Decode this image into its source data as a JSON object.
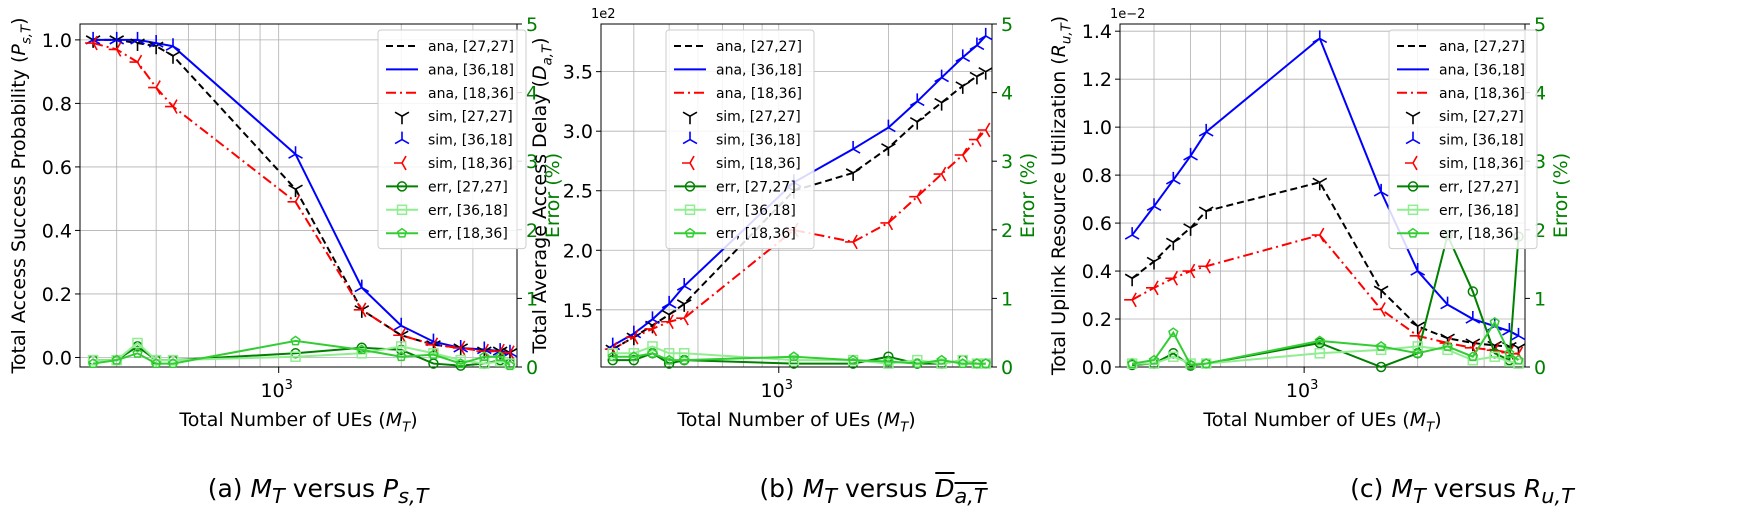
{
  "captions": [
    {
      "label": "(a)",
      "lhs": "M",
      "lhs_sub": "T",
      "mid": " versus ",
      "rhs": "P",
      "rhs_sub": "s,T",
      "overline": false
    },
    {
      "label": "(b)",
      "lhs": "M",
      "lhs_sub": "T",
      "mid": " versus ",
      "rhs": "D",
      "rhs_sub": "a,T",
      "overline": true
    },
    {
      "label": "(c)",
      "lhs": "M",
      "lhs_sub": "T",
      "mid": " versus ",
      "rhs": "R",
      "rhs_sub": "u,T",
      "overline": false
    }
  ],
  "chart_data": [
    {
      "type": "line",
      "xlabel": "Total Number of UEs (M_T)",
      "ylabel": "Total Access Success Probability (P_{s,T})",
      "ylabel_right": "Error (%)",
      "xscale": "log",
      "xlim": [
        325,
        3850
      ],
      "xticks": [
        1000
      ],
      "xtick_labels": [
        "10^3"
      ],
      "ylim": [
        -0.03,
        1.05
      ],
      "yticks": [
        0.0,
        0.2,
        0.4,
        0.6,
        0.8,
        1.0
      ],
      "ytick_labels": [
        "0.0",
        "0.2",
        "0.4",
        "0.6",
        "0.8",
        "1.0"
      ],
      "y2lim": [
        0,
        5
      ],
      "y2ticks": [
        0,
        1,
        2,
        3,
        4,
        5
      ],
      "exponent_label": "",
      "grid": true,
      "legend_position": "top-right",
      "x": [
        350,
        400,
        450,
        500,
        550,
        1100,
        1600,
        2000,
        2400,
        2800,
        3200,
        3500,
        3700
      ],
      "series": [
        {
          "name": "ana, [27,27]",
          "kind": "ana",
          "color": "#000000",
          "values": [
            1.0,
            1.0,
            0.99,
            0.98,
            0.95,
            0.53,
            0.15,
            0.07,
            0.04,
            0.03,
            0.02,
            0.02,
            0.015
          ]
        },
        {
          "name": "ana, [36,18]",
          "kind": "ana",
          "color": "#0000ff",
          "values": [
            1.0,
            1.0,
            1.0,
            0.99,
            0.98,
            0.64,
            0.22,
            0.1,
            0.05,
            0.03,
            0.025,
            0.02,
            0.015
          ]
        },
        {
          "name": "ana, [18,36]",
          "kind": "ana",
          "color": "#ff0000",
          "values": [
            0.99,
            0.97,
            0.93,
            0.85,
            0.79,
            0.49,
            0.15,
            0.07,
            0.04,
            0.03,
            0.02,
            0.02,
            0.015
          ]
        },
        {
          "name": "sim, [27,27]",
          "kind": "sim",
          "color": "#000000",
          "values": [
            1.0,
            1.0,
            0.99,
            0.98,
            0.95,
            0.53,
            0.15,
            0.07,
            0.04,
            0.03,
            0.02,
            0.02,
            0.015
          ]
        },
        {
          "name": "sim, [36,18]",
          "kind": "sim",
          "color": "#0000ff",
          "values": [
            1.0,
            1.0,
            1.0,
            0.99,
            0.98,
            0.64,
            0.22,
            0.1,
            0.05,
            0.03,
            0.025,
            0.02,
            0.015
          ]
        },
        {
          "name": "sim, [18,36]",
          "kind": "sim",
          "color": "#ff0000",
          "values": [
            0.99,
            0.97,
            0.93,
            0.85,
            0.79,
            0.49,
            0.15,
            0.07,
            0.04,
            0.03,
            0.02,
            0.02,
            0.015
          ]
        },
        {
          "name": "err, [27,27]",
          "kind": "err",
          "color": "#008000",
          "values": [
            0.1,
            0.1,
            0.3,
            0.1,
            0.1,
            0.2,
            0.28,
            0.25,
            0.05,
            0.02,
            0.05,
            0.1,
            0.05
          ]
        },
        {
          "name": "err, [36,18]",
          "kind": "err",
          "color": "#90ee90",
          "values": [
            0.1,
            0.1,
            0.35,
            0.1,
            0.1,
            0.15,
            0.2,
            0.3,
            0.2,
            0.1,
            0.05,
            0.08,
            0.05
          ]
        },
        {
          "name": "err, [18,36]",
          "kind": "err",
          "color": "#32cd32",
          "values": [
            0.05,
            0.1,
            0.2,
            0.05,
            0.05,
            0.38,
            0.25,
            0.15,
            0.18,
            0.05,
            0.15,
            0.15,
            0.02
          ]
        }
      ]
    },
    {
      "type": "line",
      "xlabel": "Total Number of UEs (M_T)",
      "ylabel": "Total Average Access Delay (D_{a,T})",
      "ylabel_right": "Error (%)",
      "xscale": "log",
      "xlim": [
        325,
        3850
      ],
      "xticks": [
        1000
      ],
      "xtick_labels": [
        "10^3"
      ],
      "ylim": [
        1.02,
        3.9
      ],
      "yticks": [
        1.5,
        2.0,
        2.5,
        3.0,
        3.5
      ],
      "ytick_labels": [
        "1.5",
        "2.0",
        "2.5",
        "3.0",
        "3.5"
      ],
      "y2lim": [
        0,
        5
      ],
      "y2ticks": [
        0,
        1,
        2,
        3,
        4,
        5
      ],
      "exponent_label": "1e2",
      "grid": true,
      "legend_position": "top-left",
      "x": [
        350,
        400,
        450,
        500,
        550,
        1100,
        1600,
        2000,
        2400,
        2800,
        3200,
        3500,
        3700
      ],
      "series": [
        {
          "name": "ana, [27,27]",
          "kind": "ana",
          "color": "#000000",
          "values": [
            1.17,
            1.27,
            1.37,
            1.46,
            1.55,
            2.5,
            2.65,
            2.86,
            3.08,
            3.24,
            3.38,
            3.46,
            3.5
          ]
        },
        {
          "name": "ana, [36,18]",
          "kind": "ana",
          "color": "#0000ff",
          "values": [
            1.2,
            1.3,
            1.42,
            1.55,
            1.7,
            2.57,
            2.85,
            3.03,
            3.25,
            3.45,
            3.62,
            3.72,
            3.8
          ]
        },
        {
          "name": "ana, [18,36]",
          "kind": "ana",
          "color": "#ff0000",
          "values": [
            1.17,
            1.27,
            1.34,
            1.4,
            1.43,
            2.17,
            2.07,
            2.23,
            2.45,
            2.64,
            2.8,
            2.93,
            3.01
          ]
        },
        {
          "name": "sim, [27,27]",
          "kind": "sim",
          "color": "#000000",
          "values": [
            1.17,
            1.27,
            1.37,
            1.46,
            1.55,
            2.5,
            2.65,
            2.86,
            3.08,
            3.24,
            3.38,
            3.46,
            3.5
          ]
        },
        {
          "name": "sim, [36,18]",
          "kind": "sim",
          "color": "#0000ff",
          "values": [
            1.2,
            1.3,
            1.42,
            1.55,
            1.7,
            2.57,
            2.85,
            3.03,
            3.25,
            3.45,
            3.62,
            3.72,
            3.8
          ]
        },
        {
          "name": "sim, [18,36]",
          "kind": "sim",
          "color": "#ff0000",
          "values": [
            1.17,
            1.27,
            1.34,
            1.4,
            1.43,
            2.17,
            2.07,
            2.23,
            2.45,
            2.64,
            2.8,
            2.93,
            3.01
          ]
        },
        {
          "name": "err, [27,27]",
          "kind": "err",
          "color": "#008000",
          "values": [
            0.1,
            0.1,
            0.2,
            0.05,
            0.1,
            0.05,
            0.05,
            0.15,
            0.05,
            0.05,
            0.1,
            0.05,
            0.05
          ]
        },
        {
          "name": "err, [36,18]",
          "kind": "err",
          "color": "#90ee90",
          "values": [
            0.2,
            0.2,
            0.3,
            0.2,
            0.2,
            0.1,
            0.1,
            0.05,
            0.1,
            0.05,
            0.1,
            0.05,
            0.05
          ]
        },
        {
          "name": "err, [18,36]",
          "kind": "err",
          "color": "#32cd32",
          "values": [
            0.15,
            0.15,
            0.2,
            0.1,
            0.1,
            0.15,
            0.1,
            0.08,
            0.05,
            0.1,
            0.05,
            0.05,
            0.05
          ]
        }
      ]
    },
    {
      "type": "line",
      "xlabel": "Total Number of UEs (M_T)",
      "ylabel": "Total Uplink Resource Utilization (R_{u,T})",
      "ylabel_right": "Error (%)",
      "xscale": "log",
      "xlim": [
        325,
        3850
      ],
      "xticks": [
        1000
      ],
      "xtick_labels": [
        "10^3"
      ],
      "ylim": [
        0.0,
        1.43
      ],
      "yticks": [
        0.0,
        0.2,
        0.4,
        0.6,
        0.8,
        1.0,
        1.2,
        1.4
      ],
      "ytick_labels": [
        "0.0",
        "0.2",
        "0.4",
        "0.6",
        "0.8",
        "1.0",
        "1.2",
        "1.4"
      ],
      "y2lim": [
        0,
        5
      ],
      "y2ticks": [
        0,
        1,
        2,
        3,
        4,
        5
      ],
      "exponent_label": "1e−2",
      "grid": true,
      "legend_position": "top-right",
      "x": [
        350,
        400,
        450,
        500,
        550,
        1100,
        1600,
        2000,
        2400,
        2800,
        3200,
        3500,
        3700
      ],
      "series": [
        {
          "name": "ana, [27,27]",
          "kind": "ana",
          "color": "#000000",
          "values": [
            0.37,
            0.44,
            0.52,
            0.58,
            0.65,
            0.77,
            0.32,
            0.17,
            0.12,
            0.1,
            0.09,
            0.085,
            0.08
          ]
        },
        {
          "name": "ana, [36,18]",
          "kind": "ana",
          "color": "#0000ff",
          "values": [
            0.55,
            0.67,
            0.78,
            0.88,
            0.98,
            1.37,
            0.73,
            0.4,
            0.26,
            0.2,
            0.17,
            0.15,
            0.13
          ]
        },
        {
          "name": "ana, [18,36]",
          "kind": "ana",
          "color": "#ff0000",
          "values": [
            0.28,
            0.33,
            0.37,
            0.4,
            0.42,
            0.55,
            0.24,
            0.13,
            0.1,
            0.08,
            0.07,
            0.06,
            0.055
          ]
        },
        {
          "name": "sim, [27,27]",
          "kind": "sim",
          "color": "#000000",
          "values": [
            0.37,
            0.44,
            0.52,
            0.58,
            0.65,
            0.77,
            0.32,
            0.17,
            0.12,
            0.1,
            0.09,
            0.085,
            0.08
          ]
        },
        {
          "name": "sim, [36,18]",
          "kind": "sim",
          "color": "#0000ff",
          "values": [
            0.55,
            0.67,
            0.78,
            0.88,
            0.98,
            1.37,
            0.73,
            0.4,
            0.26,
            0.2,
            0.17,
            0.15,
            0.13
          ]
        },
        {
          "name": "sim, [18,36]",
          "kind": "sim",
          "color": "#ff0000",
          "values": [
            0.28,
            0.33,
            0.37,
            0.4,
            0.42,
            0.55,
            0.24,
            0.13,
            0.1,
            0.08,
            0.07,
            0.06,
            0.055
          ]
        },
        {
          "name": "err, [27,27]",
          "kind": "err",
          "color": "#008000",
          "values": [
            0.03,
            0.05,
            0.2,
            0.02,
            0.05,
            0.35,
            0.0,
            0.2,
            1.92,
            1.1,
            0.2,
            0.1,
            1.9
          ]
        },
        {
          "name": "err, [36,18]",
          "kind": "err",
          "color": "#90ee90",
          "values": [
            0.05,
            0.05,
            0.15,
            0.05,
            0.05,
            0.2,
            0.25,
            0.3,
            0.25,
            0.1,
            0.15,
            0.08,
            0.05
          ]
        },
        {
          "name": "err, [18,36]",
          "kind": "err",
          "color": "#32cd32",
          "values": [
            0.05,
            0.1,
            0.5,
            0.03,
            0.05,
            0.38,
            0.3,
            0.2,
            0.3,
            0.15,
            0.65,
            0.2,
            0.1
          ]
        }
      ]
    }
  ]
}
